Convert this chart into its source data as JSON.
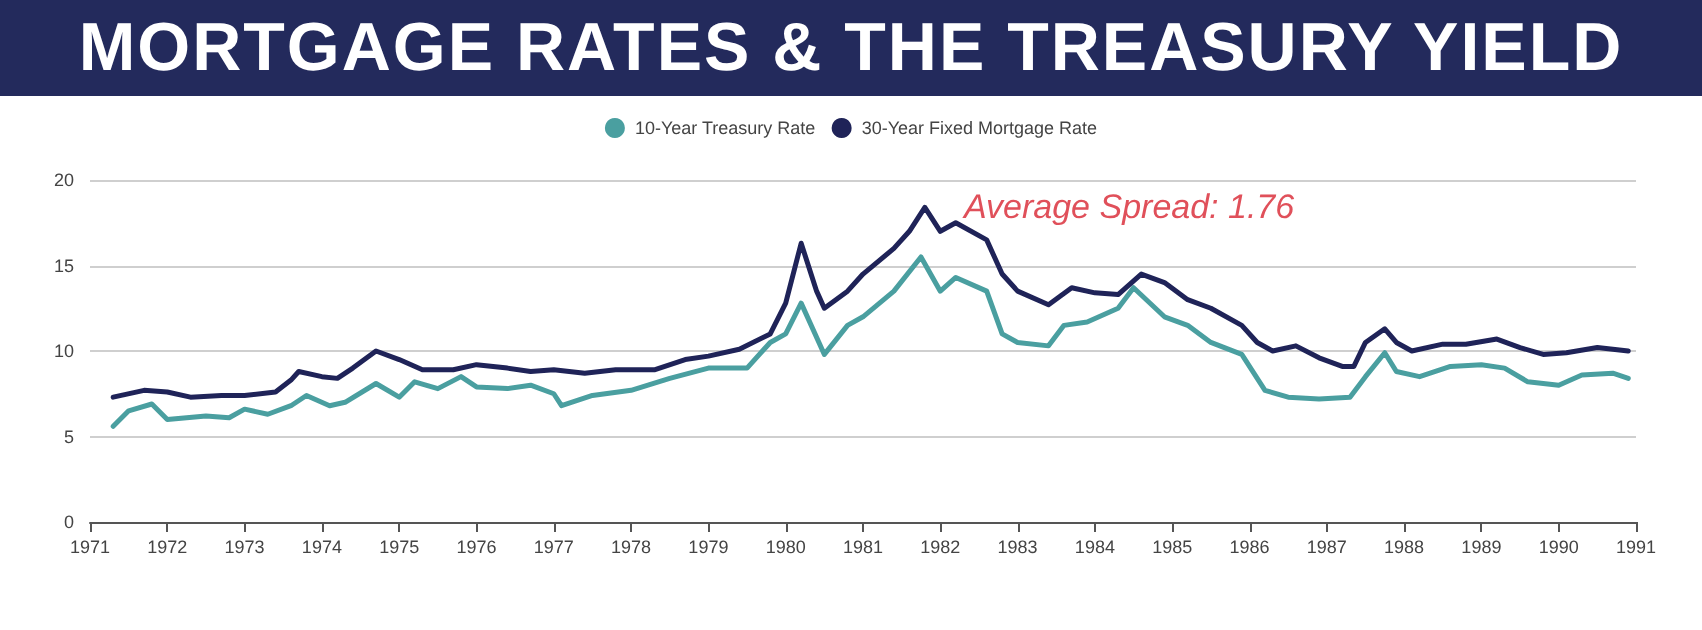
{
  "chart_data": {
    "type": "line",
    "title": "MORTGAGE RATES & THE TREASURY YIELD",
    "annotations": [
      "Average Spread: 1.76"
    ],
    "xlim": [
      1971,
      1991
    ],
    "xticks": [
      1971,
      1972,
      1973,
      1974,
      1975,
      1976,
      1977,
      1978,
      1979,
      1980,
      1981,
      1982,
      1983,
      1984,
      1985,
      1986,
      1987,
      1988,
      1989,
      1990,
      1991
    ],
    "ylim": [
      0,
      20
    ],
    "yticks": [
      0,
      5,
      10,
      15,
      20
    ],
    "grid": "y",
    "legend": "top",
    "marker": "none",
    "line_style": "solid",
    "series": [
      {
        "name": "10-Year Treasury Rate",
        "color": "#4a9fa0",
        "x": [
          1971.3,
          1971.5,
          1971.8,
          1972.0,
          1972.5,
          1972.8,
          1973.0,
          1973.3,
          1973.6,
          1973.8,
          1974.1,
          1974.3,
          1974.7,
          1975.0,
          1975.2,
          1975.5,
          1975.8,
          1976.0,
          1976.4,
          1976.7,
          1977.0,
          1977.1,
          1977.5,
          1978.0,
          1978.5,
          1979.0,
          1979.5,
          1979.8,
          1980.0,
          1980.2,
          1980.5,
          1980.8,
          1981.0,
          1981.4,
          1981.75,
          1982.0,
          1982.2,
          1982.6,
          1982.8,
          1983.0,
          1983.4,
          1983.6,
          1983.9,
          1984.3,
          1984.5,
          1984.9,
          1985.2,
          1985.5,
          1985.9,
          1986.2,
          1986.5,
          1986.9,
          1987.3,
          1987.5,
          1987.75,
          1987.9,
          1988.2,
          1988.6,
          1989.0,
          1989.3,
          1989.6,
          1990.0,
          1990.3,
          1990.7,
          1990.9
        ],
        "values": [
          5.6,
          6.5,
          6.9,
          6.0,
          6.2,
          6.1,
          6.6,
          6.3,
          6.8,
          7.4,
          6.8,
          7.0,
          8.1,
          7.3,
          8.2,
          7.8,
          8.5,
          7.9,
          7.8,
          8.0,
          7.5,
          6.8,
          7.4,
          7.7,
          8.4,
          9.0,
          9.0,
          10.5,
          11.0,
          12.8,
          9.8,
          11.5,
          12.0,
          13.5,
          15.5,
          13.5,
          14.3,
          13.5,
          11.0,
          10.5,
          10.3,
          11.5,
          11.7,
          12.5,
          13.7,
          12.0,
          11.5,
          10.5,
          9.8,
          7.7,
          7.3,
          7.2,
          7.3,
          8.5,
          9.9,
          8.8,
          8.5,
          9.1,
          9.2,
          9.0,
          8.2,
          8.0,
          8.6,
          8.7,
          8.4
        ]
      },
      {
        "name": "30-Year Fixed Mortgage Rate",
        "color": "#1f2358",
        "x": [
          1971.3,
          1971.7,
          1972.0,
          1972.3,
          1972.7,
          1973.0,
          1973.4,
          1973.6,
          1973.7,
          1974.0,
          1974.2,
          1974.4,
          1974.7,
          1975.0,
          1975.3,
          1975.7,
          1976.0,
          1976.4,
          1976.7,
          1977.0,
          1977.4,
          1977.8,
          1978.3,
          1978.7,
          1979.0,
          1979.4,
          1979.8,
          1980.0,
          1980.2,
          1980.4,
          1980.5,
          1980.8,
          1981.0,
          1981.4,
          1981.6,
          1981.8,
          1982.0,
          1982.2,
          1982.6,
          1982.8,
          1983.0,
          1983.4,
          1983.7,
          1984.0,
          1984.3,
          1984.6,
          1984.9,
          1985.2,
          1985.5,
          1985.9,
          1986.1,
          1986.3,
          1986.6,
          1986.9,
          1987.2,
          1987.35,
          1987.5,
          1987.75,
          1987.9,
          1988.1,
          1988.5,
          1988.8,
          1989.2,
          1989.5,
          1989.8,
          1990.1,
          1990.5,
          1990.9
        ],
        "values": [
          7.3,
          7.7,
          7.6,
          7.3,
          7.4,
          7.4,
          7.6,
          8.3,
          8.8,
          8.5,
          8.4,
          9.0,
          10.0,
          9.5,
          8.9,
          8.9,
          9.2,
          9.0,
          8.8,
          8.9,
          8.7,
          8.9,
          8.9,
          9.5,
          9.7,
          10.1,
          11.0,
          12.8,
          16.3,
          13.5,
          12.5,
          13.5,
          14.5,
          16.0,
          17.0,
          18.4,
          17.0,
          17.5,
          16.5,
          14.5,
          13.5,
          12.7,
          13.7,
          13.4,
          13.3,
          14.5,
          14.0,
          13.0,
          12.5,
          11.5,
          10.5,
          10.0,
          10.3,
          9.6,
          9.1,
          9.1,
          10.5,
          11.3,
          10.5,
          10.0,
          10.4,
          10.4,
          10.7,
          10.2,
          9.8,
          9.9,
          10.2,
          10.0
        ]
      }
    ]
  }
}
